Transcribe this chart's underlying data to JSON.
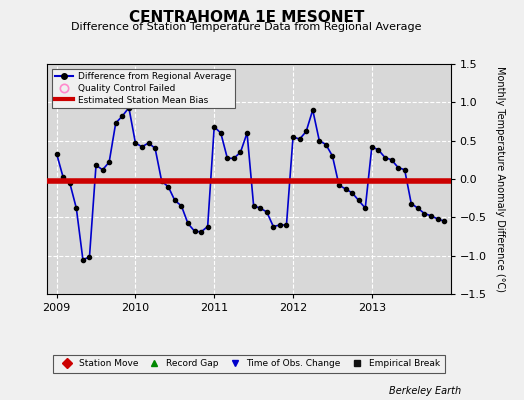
{
  "title": "CENTRAHOMA 1E MESONET",
  "subtitle": "Difference of Station Temperature Data from Regional Average",
  "ylabel": "Monthly Temperature Anomaly Difference (°C)",
  "ylim": [
    -1.5,
    1.5
  ],
  "yticks": [
    -1.5,
    -1.0,
    -0.5,
    0.0,
    0.5,
    1.0,
    1.5
  ],
  "bias_value": -0.02,
  "background_color": "#f0f0f0",
  "plot_bg_color": "#d8d8d8",
  "line_color": "#0000cc",
  "marker_color": "#000000",
  "bias_color": "#cc0000",
  "berkeley_earth_text": "Berkeley Earth",
  "time_series": [
    0.33,
    0.02,
    -0.05,
    -0.38,
    -1.05,
    -1.02,
    0.18,
    0.12,
    0.22,
    0.73,
    0.82,
    0.93,
    0.47,
    0.42,
    0.47,
    0.4,
    -0.03,
    -0.1,
    -0.28,
    -0.35,
    -0.58,
    -0.68,
    -0.69,
    -0.62,
    0.68,
    0.6,
    0.27,
    0.27,
    0.35,
    0.6,
    -0.35,
    -0.38,
    -0.43,
    -0.62,
    -0.6,
    -0.6,
    0.55,
    0.52,
    0.62,
    0.9,
    0.5,
    0.45,
    0.3,
    -0.08,
    -0.13,
    -0.18,
    -0.28,
    -0.38,
    0.42,
    0.38,
    0.28,
    0.25,
    0.15,
    0.12,
    -0.32,
    -0.38,
    -0.45,
    -0.48,
    -0.52,
    -0.55
  ],
  "num_months": 60,
  "start_year": 2009.0,
  "xlim": [
    2008.88,
    2014.0
  ],
  "xticks": [
    2009,
    2010,
    2011,
    2012,
    2013
  ],
  "title_fontsize": 11,
  "subtitle_fontsize": 8,
  "ylabel_fontsize": 7,
  "tick_fontsize": 8
}
